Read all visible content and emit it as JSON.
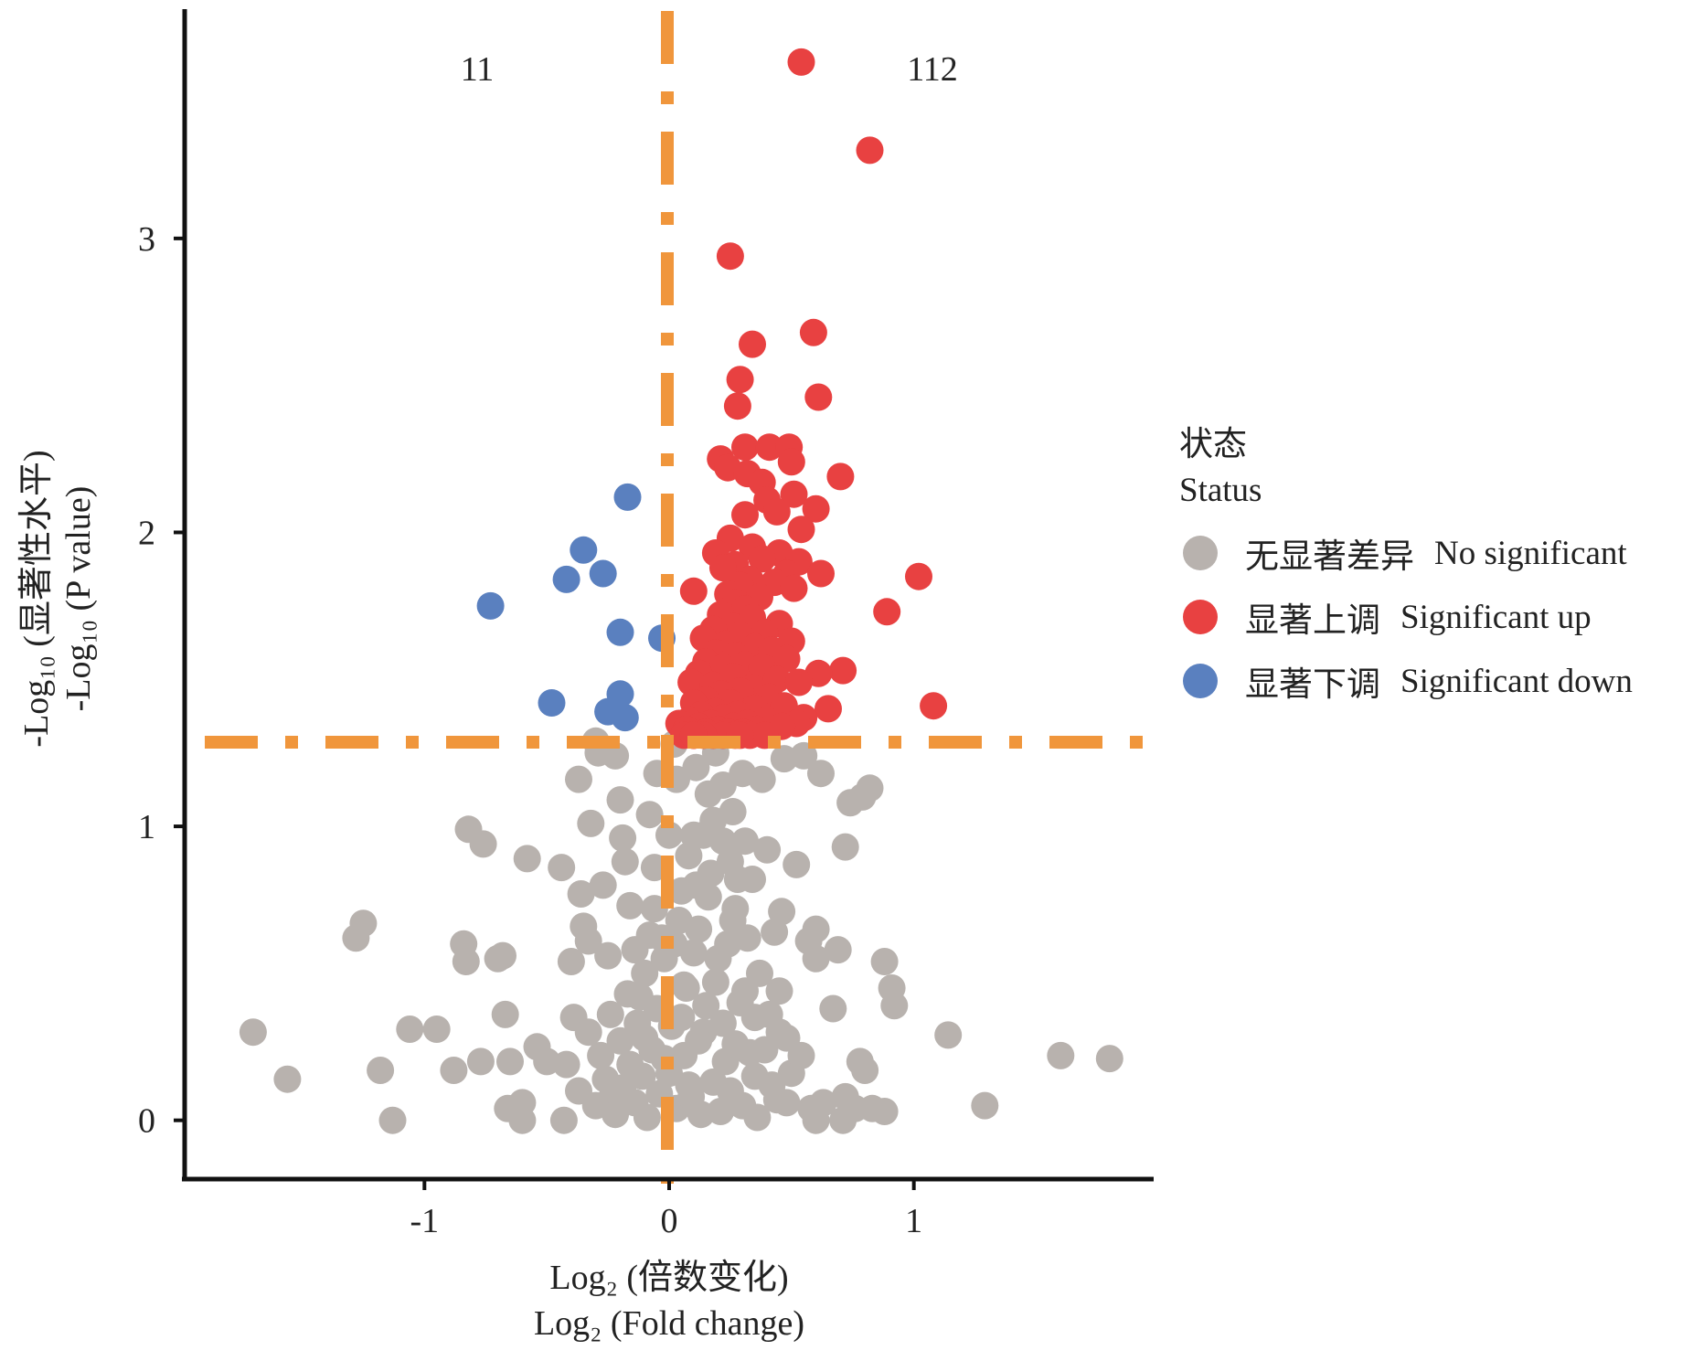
{
  "chart_data": {
    "type": "scatter",
    "title": "",
    "counts": {
      "down": "11",
      "up": "112"
    },
    "xlabel": {
      "cn": "Log₂ (倍数变化)",
      "en": "Log₂ (Fold change)"
    },
    "ylabel": {
      "cn": "-Log₁₀ (显著性水平)",
      "en": "-Log₁₀ (P value)"
    },
    "xlim": [
      -1.98,
      1.98
    ],
    "ylim": [
      -0.2,
      3.78
    ],
    "x_ticks": [
      -1,
      0,
      1
    ],
    "x_tick_labels": [
      "-1",
      "0",
      "1"
    ],
    "y_ticks": [
      0,
      1,
      2,
      3
    ],
    "y_tick_labels": [
      "0",
      "1",
      "2",
      "3"
    ],
    "thresholds": {
      "x": 0,
      "y": 1.3
    },
    "colors": {
      "ns": "#b8b2ae",
      "up": "#e84141",
      "down": "#5a80bf",
      "threshold": "#f0963c",
      "axis": "#111111"
    },
    "legend": {
      "title_cn": "状态",
      "title_en": "Status",
      "items": [
        {
          "key": "ns",
          "cn": "无显著差异",
          "en": "No significant"
        },
        {
          "key": "up",
          "cn": "显著上调",
          "en": "Significant up"
        },
        {
          "key": "down",
          "cn": "显著下调",
          "en": "Significant down"
        }
      ]
    },
    "series": [
      {
        "name": "Significant down",
        "key": "down",
        "points": [
          [
            -0.73,
            1.75
          ],
          [
            -0.48,
            1.42
          ],
          [
            -0.42,
            1.84
          ],
          [
            -0.35,
            1.94
          ],
          [
            -0.27,
            1.86
          ],
          [
            -0.25,
            1.39
          ],
          [
            -0.2,
            1.45
          ],
          [
            -0.2,
            1.66
          ],
          [
            -0.18,
            1.37
          ],
          [
            -0.17,
            2.12
          ],
          [
            -0.03,
            1.64
          ]
        ]
      },
      {
        "name": "Significant up",
        "key": "up",
        "points": [
          [
            0.54,
            3.6
          ],
          [
            0.82,
            3.3
          ],
          [
            0.25,
            2.94
          ],
          [
            0.59,
            2.68
          ],
          [
            0.34,
            2.64
          ],
          [
            0.29,
            2.52
          ],
          [
            0.61,
            2.46
          ],
          [
            0.28,
            2.43
          ],
          [
            0.31,
            2.29
          ],
          [
            0.41,
            2.29
          ],
          [
            0.49,
            2.29
          ],
          [
            0.21,
            2.25
          ],
          [
            0.5,
            2.24
          ],
          [
            0.24,
            2.22
          ],
          [
            0.32,
            2.2
          ],
          [
            0.7,
            2.19
          ],
          [
            0.38,
            2.17
          ],
          [
            0.51,
            2.13
          ],
          [
            0.4,
            2.11
          ],
          [
            0.6,
            2.08
          ],
          [
            0.44,
            2.07
          ],
          [
            0.31,
            2.06
          ],
          [
            0.54,
            2.01
          ],
          [
            0.25,
            1.98
          ],
          [
            0.34,
            1.95
          ],
          [
            0.45,
            1.93
          ],
          [
            0.19,
            1.93
          ],
          [
            0.38,
            1.91
          ],
          [
            0.53,
            1.9
          ],
          [
            0.27,
            1.89
          ],
          [
            0.22,
            1.88
          ],
          [
            0.48,
            1.86
          ],
          [
            1.02,
            1.85
          ],
          [
            0.62,
            1.86
          ],
          [
            0.33,
            1.84
          ],
          [
            0.43,
            1.83
          ],
          [
            0.29,
            1.82
          ],
          [
            0.51,
            1.81
          ],
          [
            0.1,
            1.8
          ],
          [
            0.24,
            1.79
          ],
          [
            0.37,
            1.78
          ],
          [
            0.27,
            1.76
          ],
          [
            0.31,
            1.74
          ],
          [
            0.89,
            1.73
          ],
          [
            0.21,
            1.72
          ],
          [
            0.34,
            1.71
          ],
          [
            0.45,
            1.69
          ],
          [
            0.26,
            1.68
          ],
          [
            0.18,
            1.67
          ],
          [
            0.39,
            1.66
          ],
          [
            0.29,
            1.65
          ],
          [
            0.14,
            1.64
          ],
          [
            0.5,
            1.63
          ],
          [
            0.23,
            1.62
          ],
          [
            0.35,
            1.61
          ],
          [
            0.42,
            1.6
          ],
          [
            0.19,
            1.59
          ],
          [
            0.27,
            1.58
          ],
          [
            0.48,
            1.57
          ],
          [
            0.15,
            1.56
          ],
          [
            0.31,
            1.55
          ],
          [
            0.22,
            1.54
          ],
          [
            0.38,
            1.54
          ],
          [
            0.71,
            1.53
          ],
          [
            0.61,
            1.52
          ],
          [
            0.12,
            1.52
          ],
          [
            0.26,
            1.51
          ],
          [
            0.44,
            1.5
          ],
          [
            0.53,
            1.49
          ],
          [
            0.09,
            1.49
          ],
          [
            0.18,
            1.48
          ],
          [
            0.34,
            1.47
          ],
          [
            0.29,
            1.46
          ],
          [
            0.21,
            1.45
          ],
          [
            0.41,
            1.44
          ],
          [
            0.15,
            1.43
          ],
          [
            0.1,
            1.42
          ],
          [
            0.25,
            1.42
          ],
          [
            0.47,
            1.41
          ],
          [
            0.35,
            1.4
          ],
          [
            0.65,
            1.4
          ],
          [
            1.08,
            1.41
          ],
          [
            0.19,
            1.39
          ],
          [
            0.13,
            1.38
          ],
          [
            0.28,
            1.38
          ],
          [
            0.55,
            1.37
          ],
          [
            0.22,
            1.37
          ],
          [
            0.08,
            1.36
          ],
          [
            0.4,
            1.36
          ],
          [
            0.32,
            1.35
          ],
          [
            0.17,
            1.35
          ],
          [
            0.52,
            1.35
          ],
          [
            0.04,
            1.35
          ],
          [
            0.26,
            1.34
          ],
          [
            0.12,
            1.34
          ],
          [
            0.46,
            1.34
          ],
          [
            0.36,
            1.33
          ],
          [
            0.2,
            1.33
          ],
          [
            0.07,
            1.33
          ],
          [
            0.3,
            1.32
          ],
          [
            0.15,
            1.32
          ],
          [
            0.24,
            1.32
          ],
          [
            0.1,
            1.31
          ],
          [
            0.33,
            1.31
          ],
          [
            0.18,
            1.31
          ],
          [
            0.27,
            1.31
          ],
          [
            0.06,
            1.31
          ],
          [
            0.39,
            1.31
          ],
          [
            0.22,
            1.31
          ],
          [
            0.14,
            1.31
          ],
          [
            0.29,
            1.31
          ],
          [
            0.1,
            1.31
          ]
        ]
      },
      {
        "name": "No significant",
        "key": "ns",
        "points": [
          [
            -1.7,
            0.3
          ],
          [
            -1.56,
            0.14
          ],
          [
            -1.28,
            0.62
          ],
          [
            -1.25,
            0.67
          ],
          [
            -1.18,
            0.17
          ],
          [
            -1.13,
            0.0
          ],
          [
            -1.06,
            0.31
          ],
          [
            -0.95,
            0.31
          ],
          [
            -0.88,
            0.17
          ],
          [
            -0.84,
            0.6
          ],
          [
            -0.83,
            0.54
          ],
          [
            -0.82,
            0.99
          ],
          [
            -0.76,
            0.94
          ],
          [
            -0.77,
            0.2
          ],
          [
            -0.7,
            0.55
          ],
          [
            -0.68,
            0.56
          ],
          [
            -0.67,
            0.36
          ],
          [
            -0.66,
            0.04
          ],
          [
            -0.65,
            0.2
          ],
          [
            -0.6,
            0.06
          ],
          [
            -0.6,
            0.0
          ],
          [
            -0.58,
            0.89
          ],
          [
            -0.54,
            0.25
          ],
          [
            -0.5,
            0.2
          ],
          [
            -0.44,
            0.86
          ],
          [
            -0.43,
            0.0
          ],
          [
            -0.4,
            0.54
          ],
          [
            -0.39,
            0.35
          ],
          [
            -0.37,
            1.16
          ],
          [
            -0.36,
            0.77
          ],
          [
            -0.35,
            0.66
          ],
          [
            -0.33,
            0.61
          ],
          [
            -0.32,
            1.01
          ],
          [
            -0.3,
            1.29
          ],
          [
            -0.29,
            1.25
          ],
          [
            -0.27,
            0.8
          ],
          [
            -0.25,
            0.56
          ],
          [
            -0.24,
            0.07
          ],
          [
            -0.22,
            1.24
          ],
          [
            -0.2,
            1.09
          ],
          [
            -0.19,
            0.96
          ],
          [
            -0.18,
            0.88
          ],
          [
            -0.16,
            0.73
          ],
          [
            -0.14,
            0.58
          ],
          [
            -0.12,
            0.42
          ],
          [
            -0.1,
            0.28
          ],
          [
            -0.08,
            1.04
          ],
          [
            -0.06,
            0.86
          ],
          [
            -0.05,
            1.18
          ],
          [
            -0.03,
            0.62
          ],
          [
            -0.02,
            0.21
          ],
          [
            0.0,
            0.97
          ],
          [
            0.02,
            1.28
          ],
          [
            0.03,
            1.16
          ],
          [
            0.05,
            0.78
          ],
          [
            0.06,
            0.46
          ],
          [
            0.08,
            0.12
          ],
          [
            0.1,
            0.97
          ],
          [
            0.11,
            1.2
          ],
          [
            0.12,
            0.65
          ],
          [
            0.14,
            0.3
          ],
          [
            0.16,
            1.11
          ],
          [
            0.17,
            0.84
          ],
          [
            0.19,
            1.25
          ],
          [
            0.2,
            0.55
          ],
          [
            0.22,
            1.14
          ],
          [
            0.23,
            0.2
          ],
          [
            0.25,
            0.88
          ],
          [
            0.26,
            1.05
          ],
          [
            0.27,
            0.72
          ],
          [
            0.29,
            0.4
          ],
          [
            0.3,
            1.18
          ],
          [
            0.31,
            0.95
          ],
          [
            0.32,
            0.62
          ],
          [
            0.34,
            0.82
          ],
          [
            0.35,
            0.15
          ],
          [
            0.37,
            0.5
          ],
          [
            0.38,
            1.16
          ],
          [
            0.4,
            0.92
          ],
          [
            0.41,
            0.36
          ],
          [
            0.43,
            0.64
          ],
          [
            0.44,
            0.07
          ],
          [
            0.45,
            0.44
          ],
          [
            0.46,
            0.71
          ],
          [
            0.47,
            1.23
          ],
          [
            0.48,
            0.28
          ],
          [
            0.5,
            0.16
          ],
          [
            0.52,
            0.87
          ],
          [
            0.54,
            0.22
          ],
          [
            0.55,
            1.24
          ],
          [
            0.57,
            0.61
          ],
          [
            0.58,
            0.04
          ],
          [
            0.6,
            0.55
          ],
          [
            0.6,
            0.65
          ],
          [
            0.6,
            0.0
          ],
          [
            0.62,
            1.18
          ],
          [
            0.63,
            0.06
          ],
          [
            0.67,
            0.38
          ],
          [
            0.69,
            0.58
          ],
          [
            0.71,
            0.0
          ],
          [
            0.72,
            0.93
          ],
          [
            0.72,
            0.08
          ],
          [
            0.74,
            1.08
          ],
          [
            0.76,
            0.04
          ],
          [
            0.78,
            0.2
          ],
          [
            0.79,
            1.1
          ],
          [
            0.8,
            0.17
          ],
          [
            0.82,
            1.13
          ],
          [
            0.83,
            0.04
          ],
          [
            0.88,
            0.54
          ],
          [
            0.88,
            0.03
          ],
          [
            0.91,
            0.45
          ],
          [
            0.92,
            0.39
          ],
          [
            1.14,
            0.29
          ],
          [
            1.29,
            0.05
          ],
          [
            1.6,
            0.22
          ],
          [
            1.8,
            0.21
          ],
          [
            -0.42,
            0.19
          ],
          [
            -0.37,
            0.1
          ],
          [
            -0.33,
            0.3
          ],
          [
            -0.3,
            0.05
          ],
          [
            -0.28,
            0.22
          ],
          [
            -0.26,
            0.14
          ],
          [
            -0.24,
            0.36
          ],
          [
            -0.22,
            0.02
          ],
          [
            -0.2,
            0.27
          ],
          [
            -0.19,
            0.11
          ],
          [
            -0.17,
            0.43
          ],
          [
            -0.16,
            0.19
          ],
          [
            -0.14,
            0.06
          ],
          [
            -0.13,
            0.33
          ],
          [
            -0.11,
            0.15
          ],
          [
            -0.1,
            0.5
          ],
          [
            -0.09,
            0.01
          ],
          [
            -0.07,
            0.24
          ],
          [
            -0.05,
            0.38
          ],
          [
            -0.04,
            0.09
          ],
          [
            -0.02,
            0.55
          ],
          [
            0.0,
            0.16
          ],
          [
            0.01,
            0.32
          ],
          [
            0.03,
            0.04
          ],
          [
            0.04,
            0.68
          ],
          [
            0.06,
            0.22
          ],
          [
            0.07,
            0.45
          ],
          [
            0.09,
            0.08
          ],
          [
            0.1,
            0.57
          ],
          [
            0.12,
            0.27
          ],
          [
            0.13,
            0.02
          ],
          [
            0.15,
            0.39
          ],
          [
            0.16,
            0.76
          ],
          [
            0.18,
            0.13
          ],
          [
            0.19,
            0.47
          ],
          [
            0.21,
            0.03
          ],
          [
            0.22,
            0.33
          ],
          [
            0.24,
            0.6
          ],
          [
            0.25,
            0.1
          ],
          [
            0.27,
            0.26
          ],
          [
            0.28,
            0.82
          ],
          [
            0.3,
            0.05
          ],
          [
            0.31,
            0.44
          ],
          [
            0.33,
            0.23
          ],
          [
            0.35,
            0.35
          ],
          [
            0.36,
            0.01
          ],
          [
            0.39,
            0.24
          ],
          [
            0.42,
            0.12
          ],
          [
            0.45,
            0.3
          ],
          [
            0.48,
            0.06
          ],
          [
            -0.06,
            0.72
          ],
          [
            0.08,
            0.9
          ],
          [
            0.14,
            0.97
          ],
          [
            0.18,
            1.02
          ],
          [
            0.22,
            0.95
          ],
          [
            0.26,
            0.68
          ],
          [
            0.11,
            0.8
          ],
          [
            0.02,
            0.6
          ],
          [
            -0.08,
            0.63
          ],
          [
            0.05,
            0.35
          ]
        ]
      }
    ]
  }
}
